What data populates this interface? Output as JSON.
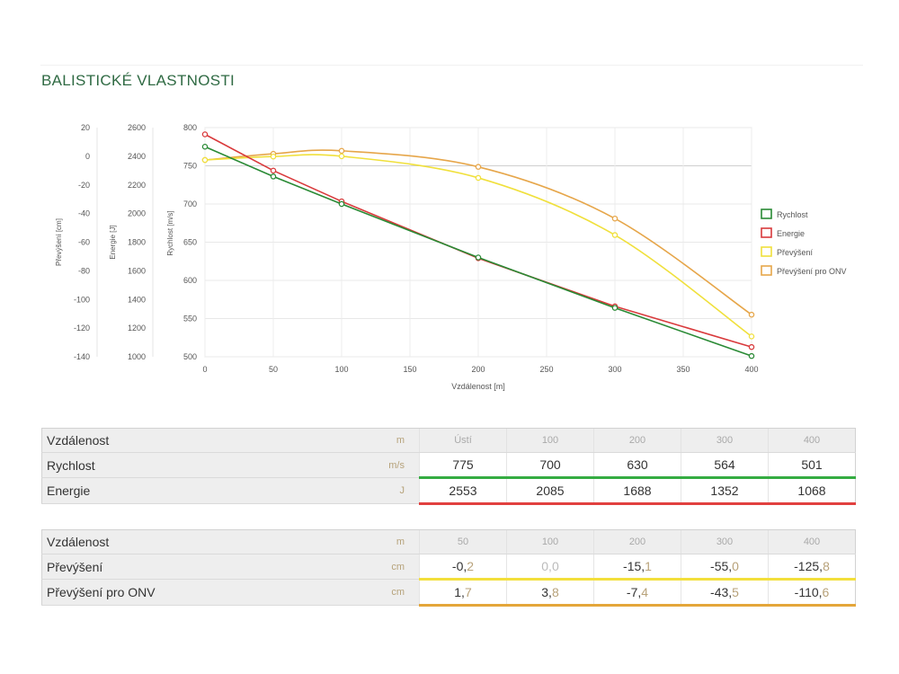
{
  "section_title": "BALISTICKÉ VLASTNOSTI",
  "colors": {
    "rychlost": "#2a8a35",
    "energie": "#d93a3c",
    "prevyseni": "#f0e03c",
    "prevyseni_onv": "#e6a64a",
    "title": "#2f6a43"
  },
  "chart_data": {
    "type": "line",
    "xlabel": "Vzdálenost [m]",
    "xlim": [
      0,
      400
    ],
    "x_ticks": [
      "0",
      "50",
      "100",
      "150",
      "200",
      "250",
      "300",
      "350",
      "400"
    ],
    "axes": [
      {
        "label": "Převýšení [cm]",
        "ticks": [
          "20",
          "0",
          "-20",
          "-40",
          "-60",
          "-80",
          "-100",
          "-120",
          "-140"
        ],
        "range": [
          -140,
          20
        ]
      },
      {
        "label": "Energie [J]",
        "ticks": [
          "2600",
          "2400",
          "2200",
          "2000",
          "1800",
          "1600",
          "1400",
          "1200",
          "1000"
        ],
        "range": [
          1000,
          2600
        ]
      },
      {
        "label": "Rychlost [m/s]",
        "ticks": [
          "800",
          "750",
          "700",
          "650",
          "600",
          "550",
          "500"
        ],
        "range": [
          500,
          800
        ]
      }
    ],
    "legend_position": "right",
    "series": [
      {
        "name": "Rychlost",
        "axis": 2,
        "x": [
          0,
          50,
          100,
          200,
          300,
          400
        ],
        "values": [
          775,
          736,
          700,
          630,
          564,
          501
        ]
      },
      {
        "name": "Energie",
        "axis": 1,
        "x": [
          0,
          50,
          100,
          200,
          300,
          400
        ],
        "values": [
          2553,
          2300,
          2085,
          1688,
          1352,
          1068
        ]
      },
      {
        "name": "Převýšení",
        "axis": 0,
        "x": [
          0,
          50,
          100,
          200,
          300,
          400
        ],
        "values": [
          -2.6,
          -0.2,
          0.0,
          -15.1,
          -55.0,
          -125.8
        ]
      },
      {
        "name": "Převýšení pro ONV",
        "axis": 0,
        "x": [
          0,
          50,
          100,
          200,
          300,
          400
        ],
        "values": [
          -2.6,
          1.7,
          3.8,
          -7.4,
          -43.5,
          -110.6
        ]
      }
    ]
  },
  "table1": {
    "head": {
      "label": "Vzdálenost",
      "unit": "m",
      "values": [
        "Ústí",
        "100",
        "200",
        "300",
        "400"
      ]
    },
    "rows": [
      {
        "label": "Rychlost",
        "unit": "m/s",
        "values": [
          "775",
          "700",
          "630",
          "564",
          "501"
        ]
      },
      {
        "label": "Energie",
        "unit": "J",
        "values": [
          "2553",
          "2085",
          "1688",
          "1352",
          "1068"
        ]
      }
    ]
  },
  "table2": {
    "head": {
      "label": "Vzdálenost",
      "unit": "m",
      "values": [
        "50",
        "100",
        "200",
        "300",
        "400"
      ]
    },
    "rows": [
      {
        "label": "Převýšení",
        "unit": "cm",
        "values": [
          {
            "int": "-0,",
            "frac": "2"
          },
          {
            "int": "0,",
            "frac": "0"
          },
          {
            "int": "-15,",
            "frac": "1"
          },
          {
            "int": "-55,",
            "frac": "0"
          },
          {
            "int": "-125,",
            "frac": "8"
          }
        ]
      },
      {
        "label": "Převýšení pro ONV",
        "unit": "cm",
        "values": [
          {
            "int": "1,",
            "frac": "7"
          },
          {
            "int": "3,",
            "frac": "8"
          },
          {
            "int": "-7,",
            "frac": "4"
          },
          {
            "int": "-43,",
            "frac": "5"
          },
          {
            "int": "-110,",
            "frac": "6"
          }
        ]
      }
    ]
  }
}
